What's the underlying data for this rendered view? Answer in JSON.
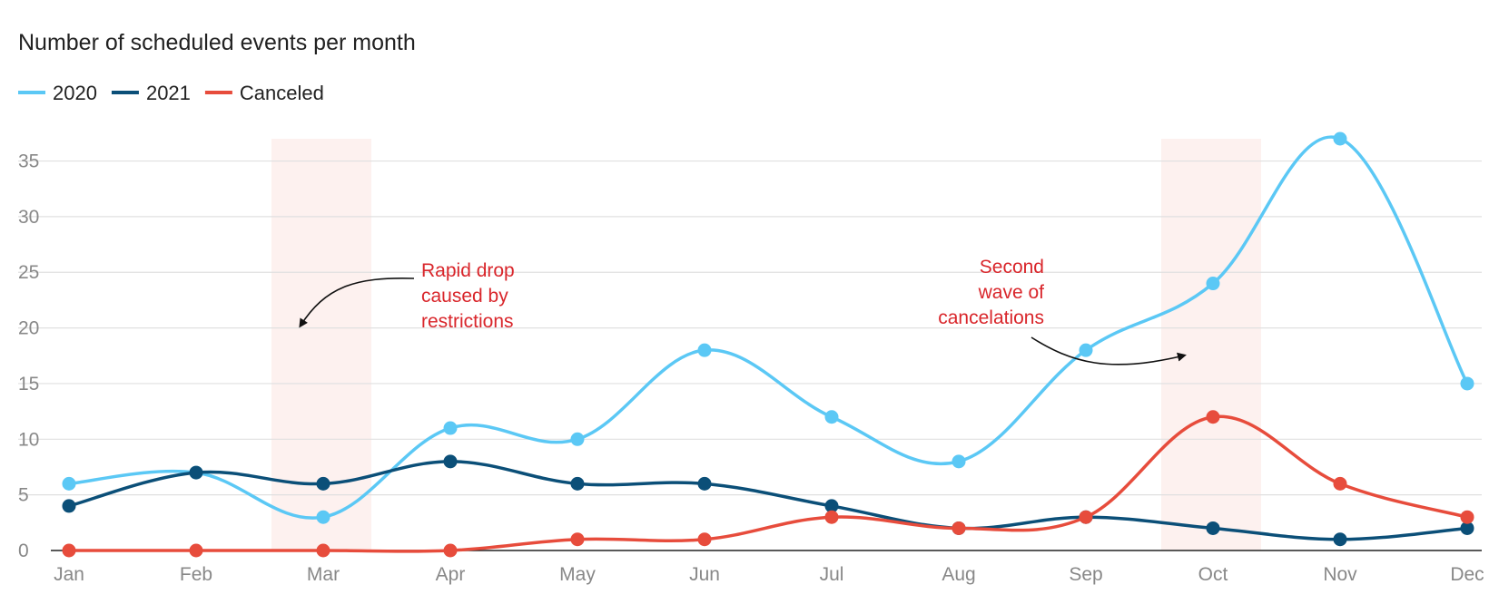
{
  "chart_data": {
    "type": "line",
    "title": "Number of scheduled events per month",
    "categories": [
      "Jan",
      "Feb",
      "Mar",
      "Apr",
      "May",
      "Jun",
      "Jul",
      "Aug",
      "Sep",
      "Oct",
      "Nov",
      "Dec"
    ],
    "y_ticks": [
      "0",
      "5",
      "10",
      "15",
      "20",
      "25",
      "30",
      "35"
    ],
    "ylim": [
      0,
      37
    ],
    "grid": true,
    "legend_position": "top-left",
    "series": [
      {
        "name": "2020",
        "color": "#5bc8f5",
        "values": [
          6,
          7,
          3,
          11,
          10,
          18,
          12,
          8,
          18,
          24,
          37,
          15
        ]
      },
      {
        "name": "2021",
        "color": "#0b4f78",
        "values": [
          4,
          7,
          6,
          8,
          6,
          6,
          4,
          2,
          3,
          2,
          1,
          2
        ]
      },
      {
        "name": "Canceled",
        "color": "#e74c3c",
        "values": [
          0,
          0,
          0,
          0,
          1,
          1,
          3,
          2,
          3,
          12,
          6,
          3
        ]
      }
    ],
    "highlighted_months": [
      "Mar",
      "Oct"
    ],
    "annotations": [
      {
        "lines": [
          "Rapid drop",
          "caused by",
          "restrictions"
        ],
        "points_to": "Mar",
        "color": "#d9262b"
      },
      {
        "lines": [
          "Second",
          "wave of",
          "cancelations"
        ],
        "points_to": "Oct",
        "color": "#d9262b"
      }
    ]
  }
}
